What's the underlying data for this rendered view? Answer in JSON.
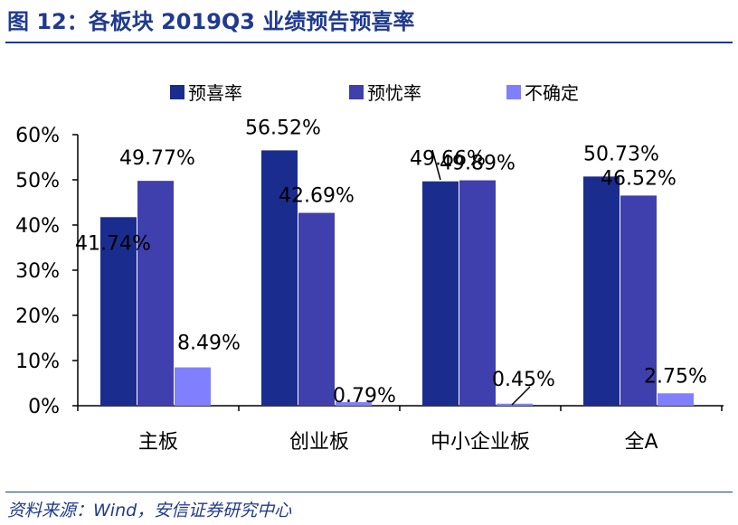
{
  "figure": {
    "title": "图 12：各板块 2019Q3 业绩预告预喜率",
    "source": "资料来源：Wind，安信证券研究中心"
  },
  "chart_data": {
    "type": "bar",
    "categories": [
      "主板",
      "创业板",
      "中小企业板",
      "全A"
    ],
    "series": [
      {
        "name": "预喜率",
        "values": [
          41.74,
          56.52,
          49.66,
          50.73
        ],
        "labels": [
          "41.74%",
          "56.52%",
          "49.66%",
          "50.73%"
        ],
        "color": "#1a2d8e"
      },
      {
        "name": "预忧率",
        "values": [
          49.77,
          42.69,
          49.89,
          46.52
        ],
        "labels": [
          "49.77%",
          "42.69%",
          "49.89%",
          "46.52%"
        ],
        "color": "#3f3fad"
      },
      {
        "name": "不确定",
        "values": [
          8.49,
          0.79,
          0.45,
          2.75
        ],
        "labels": [
          "8.49%",
          "0.79%",
          "0.45%",
          "2.75%"
        ],
        "color": "#8080ff"
      }
    ],
    "y_ticks": [
      "0%",
      "10%",
      "20%",
      "30%",
      "40%",
      "50%",
      "60%"
    ],
    "ylim": [
      0,
      60
    ],
    "legend_position": "top",
    "xlabel": "",
    "ylabel": "",
    "grid": false
  }
}
